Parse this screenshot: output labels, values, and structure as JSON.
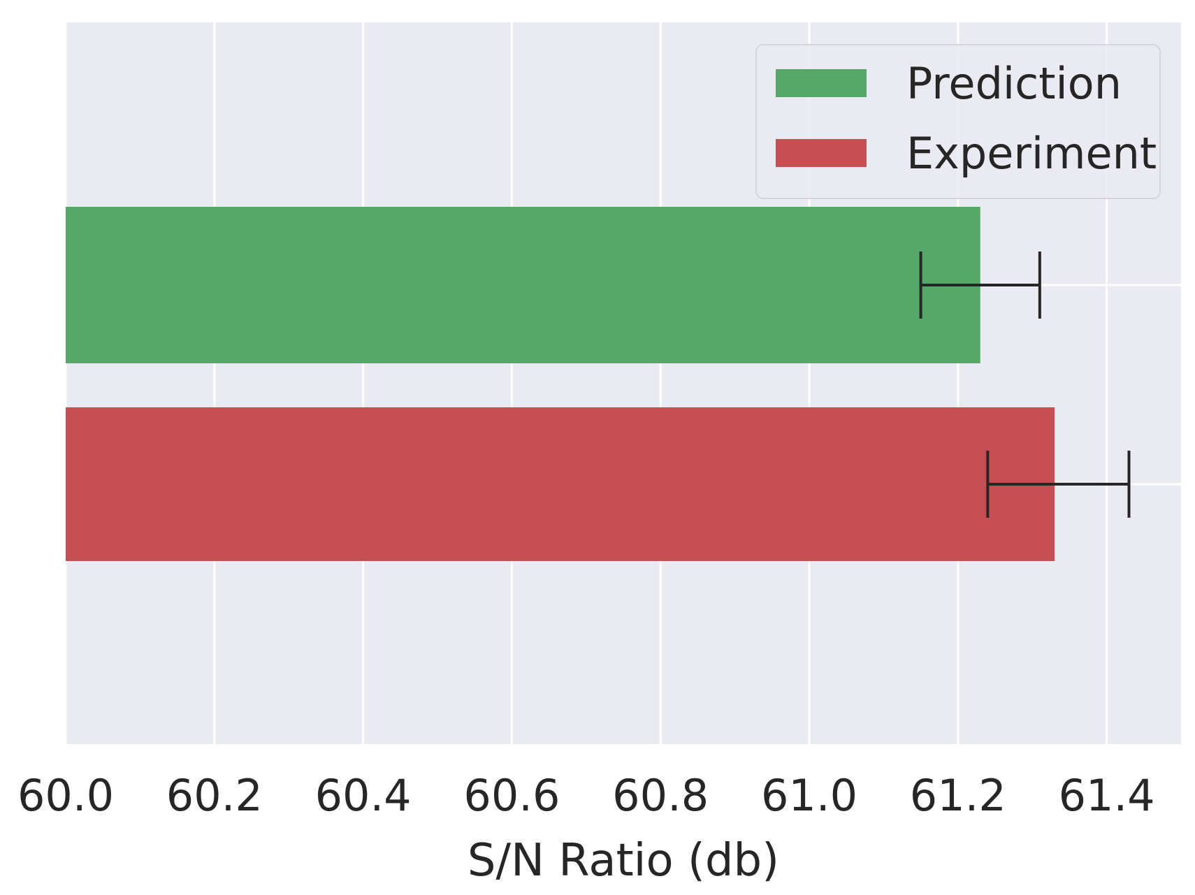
{
  "chart_data": {
    "type": "bar",
    "orientation": "horizontal",
    "title": "",
    "xlabel": "S/N Ratio (db)",
    "ylabel": "",
    "xlim": [
      60.0,
      61.5
    ],
    "xticks": [
      60.0,
      60.2,
      60.4,
      60.6,
      60.8,
      61.0,
      61.2,
      61.4
    ],
    "xtick_labels": [
      "60.0",
      "60.2",
      "60.4",
      "60.6",
      "60.8",
      "61.0",
      "61.2",
      "61.4"
    ],
    "grid": true,
    "legend_position": "top-right",
    "series": [
      {
        "name": "Prediction",
        "color": "#55a868",
        "value": 61.23,
        "error_low": 61.15,
        "error_high": 61.31
      },
      {
        "name": "Experiment",
        "color": "#c44e52",
        "value": 61.33,
        "error_low": 61.24,
        "error_high": 61.43
      }
    ]
  },
  "colors": {
    "plot_background": "#eaeaf2",
    "grid": "#ffffff",
    "errorbar": "#262626"
  }
}
